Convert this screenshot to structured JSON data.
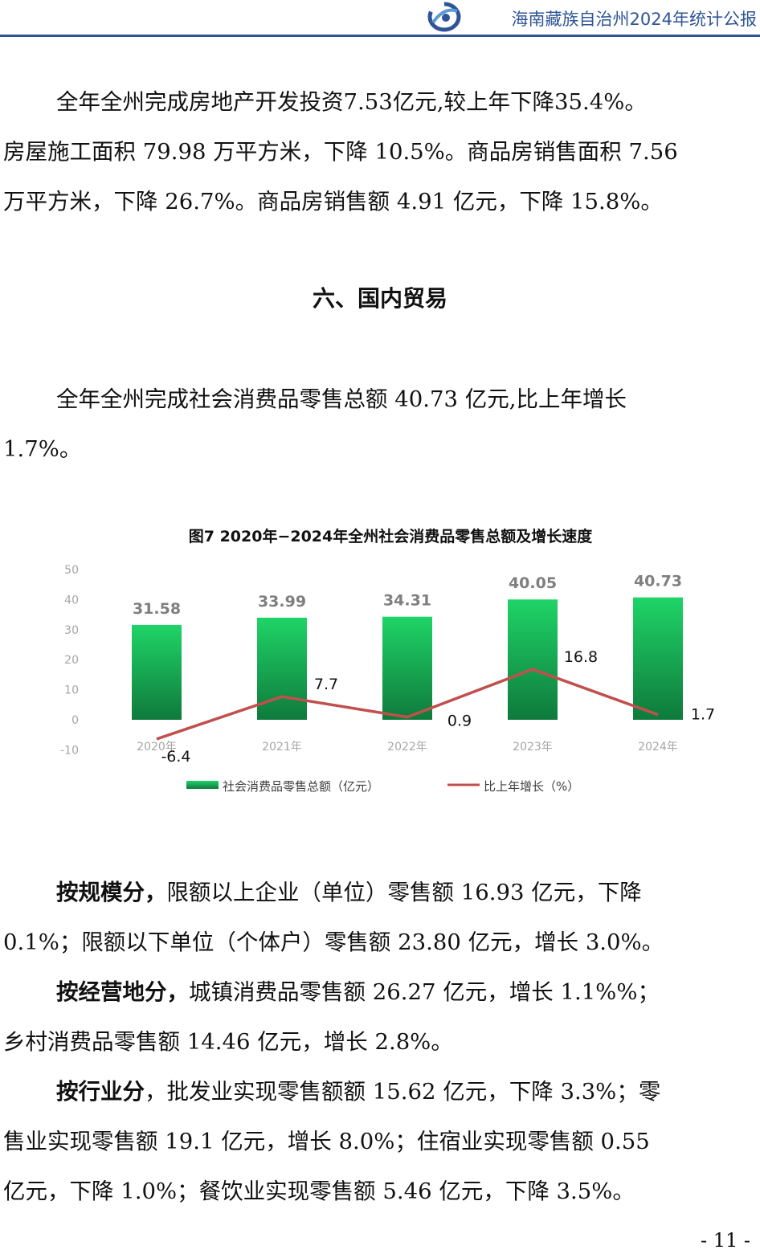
{
  "header": {
    "title": "海南藏族自治州2024年统计公报"
  },
  "paragraphs": {
    "p1": [
      "全年全州完成房地产开发投资7.53亿元,较上年下降35.4%。",
      "房屋施工面积 79.98 万平方米，下降 10.5%。商品房销售面积 7.56",
      "万平方米，下降 26.7%。商品房销售额 4.91 亿元，下降 15.8%。"
    ],
    "section_title": "六、国内贸易",
    "p2": [
      "全年全州完成社会消费品零售总额 40.73 亿元,比上年增长",
      "1.7%。"
    ],
    "p3": {
      "bold": "按规模分，",
      "line1_rest": "限额以上企业（单位）零售额 16.93 亿元，下降",
      "line2": "0.1%；限额以下单位（个体户）零售额 23.80 亿元，增长 3.0%。"
    },
    "p4": {
      "bold": "按经营地分，",
      "line1_rest": "城镇消费品零售额 26.27 亿元，增长 1.1%%；",
      "line2": "乡村消费品零售额 14.46 亿元，增长 2.8%。"
    },
    "p5": {
      "bold": "按行业分",
      "line1_rest": "，批发业实现零售额额 15.62 亿元，下降 3.3%；零",
      "line2": "售业实现零售额 19.1 亿元，增长 8.0%；住宿业实现零售额 0.55",
      "line3": "亿元，下降 1.0%；餐饮业实现零售额 5.46 亿元，下降 3.5%。"
    }
  },
  "page_number": "- 11 -",
  "chart_data": {
    "type": "bar",
    "title": "图7 2020年−2024年全州社会消费品零售总额及增长速度",
    "categories": [
      "2020年",
      "2021年",
      "2022年",
      "2023年",
      "2024年"
    ],
    "series": [
      {
        "name": "社会消费品零售总额（亿元）",
        "type": "bar",
        "values": [
          31.58,
          33.99,
          34.31,
          40.05,
          40.73
        ],
        "labels": [
          "31.58",
          "33.99",
          "34.31",
          "40.05",
          "40.73"
        ],
        "color": "#1db954"
      },
      {
        "name": "比上年增长（%）",
        "type": "line",
        "values": [
          -6.4,
          7.7,
          0.9,
          16.8,
          1.7
        ],
        "labels": [
          "-6.4",
          "7.7",
          "0.9",
          "16.8",
          "1.7"
        ],
        "color": "#c0504d"
      }
    ],
    "yticks": [
      "50",
      "40",
      "30",
      "20",
      "10",
      "0",
      "-10"
    ],
    "ylim": [
      -10,
      50
    ],
    "grid": false,
    "legend": "bottom",
    "colors": {
      "bar_top": "#1fd467",
      "bar_bottom": "#0f7a3c",
      "line": "#c0504d",
      "axis_text": "#a6a6a6",
      "label_text": "#7f7f7f"
    }
  }
}
